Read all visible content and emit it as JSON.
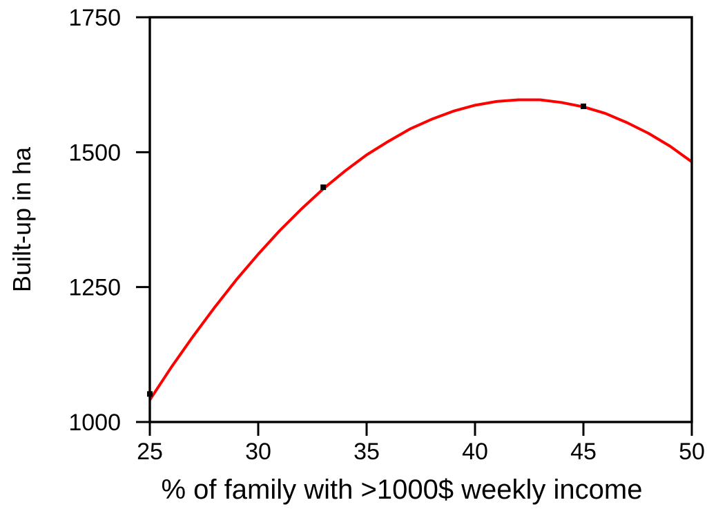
{
  "chart_data": {
    "type": "line",
    "title": "",
    "xlabel": "% of family with >1000$ weekly income",
    "ylabel": "Built-up in ha",
    "xlim": [
      25,
      50
    ],
    "ylim": [
      1000,
      1750
    ],
    "x_ticks": [
      25,
      30,
      35,
      40,
      45,
      50
    ],
    "y_ticks": [
      1000,
      1250,
      1500,
      1750
    ],
    "grid": false,
    "legend": "none",
    "frame": "full-box",
    "axis_color": "#000000",
    "background_color": "#ffffff",
    "series": [
      {
        "name": "fit-line",
        "type": "line",
        "color": "#ff0000",
        "x": [
          25,
          26,
          27,
          28,
          29,
          30,
          31,
          32,
          33,
          34,
          35,
          36,
          37,
          38,
          39,
          40,
          41,
          42,
          43,
          44,
          45,
          46,
          47,
          48,
          49,
          50
        ],
        "y": [
          1041,
          1102,
          1159,
          1213,
          1264,
          1311,
          1355,
          1395,
          1432,
          1465,
          1495,
          1520,
          1543,
          1561,
          1576,
          1587,
          1594,
          1597,
          1597,
          1592,
          1584,
          1572,
          1555,
          1535,
          1511,
          1482
        ]
      },
      {
        "name": "data-points",
        "type": "scatter",
        "marker": "square",
        "color": "#000000",
        "x": [
          25,
          33,
          45
        ],
        "y": [
          1052,
          1435,
          1585
        ]
      }
    ]
  }
}
